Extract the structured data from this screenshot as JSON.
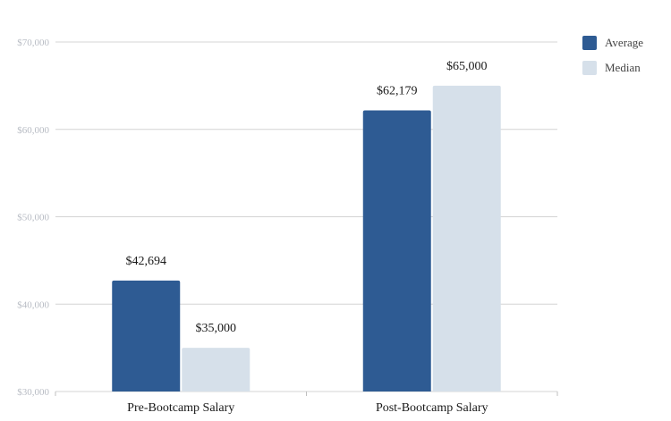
{
  "chart_data": {
    "type": "bar",
    "title": "",
    "xlabel": "",
    "ylabel": "",
    "categories": [
      "Pre-Bootcamp Salary",
      "Post-Bootcamp Salary"
    ],
    "series": [
      {
        "name": "Average",
        "values": [
          42694,
          62179
        ],
        "labels": [
          "$42,694",
          "$62,179"
        ],
        "color": "#2e5b93"
      },
      {
        "name": "Median",
        "values": [
          35000,
          65000
        ],
        "labels": [
          "$35,000",
          "$65,000"
        ],
        "color": "#d6e0ea"
      }
    ],
    "ylim": [
      30000,
      70000
    ],
    "yticks": [
      30000,
      40000,
      50000,
      60000,
      70000
    ],
    "ytick_labels": [
      "$30,000",
      "$40,000",
      "$50,000",
      "$60,000",
      "$70,000"
    ],
    "grid": true,
    "legend_position": "top-right"
  }
}
